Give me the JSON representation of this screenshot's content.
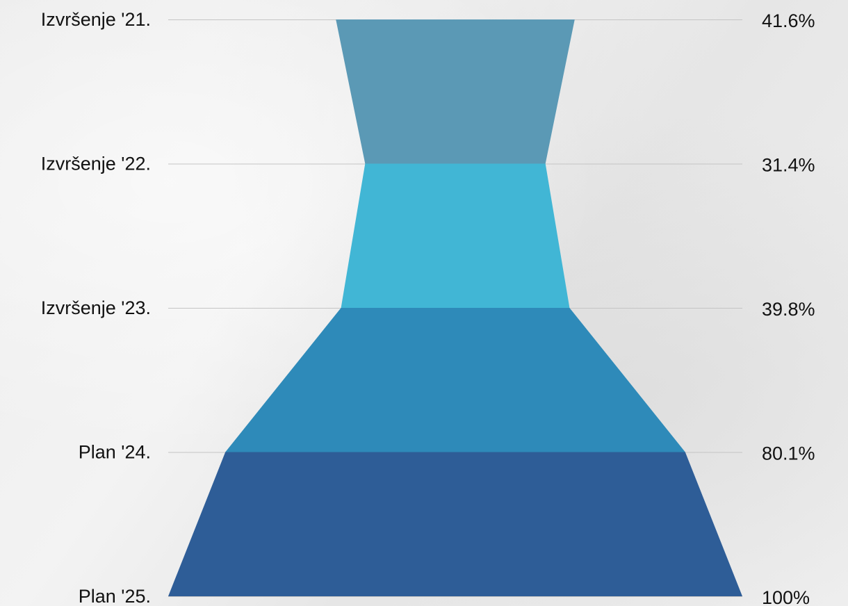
{
  "chart_data": {
    "type": "funnel",
    "categories": [
      "Izvršenje '21.",
      "Izvršenje '22.",
      "Izvršenje '23.",
      "Plan '24.",
      "Plan '25."
    ],
    "values": [
      41.6,
      31.4,
      39.8,
      80.1,
      100
    ],
    "value_labels": [
      "41.6%",
      "31.4%",
      "39.8%",
      "80.1%",
      "100%"
    ],
    "unit": "%",
    "colors": [
      "#5b99b5",
      "#41b6d5",
      "#2e8ab9",
      "#2e5d97"
    ],
    "grid": true,
    "legend": "none"
  }
}
